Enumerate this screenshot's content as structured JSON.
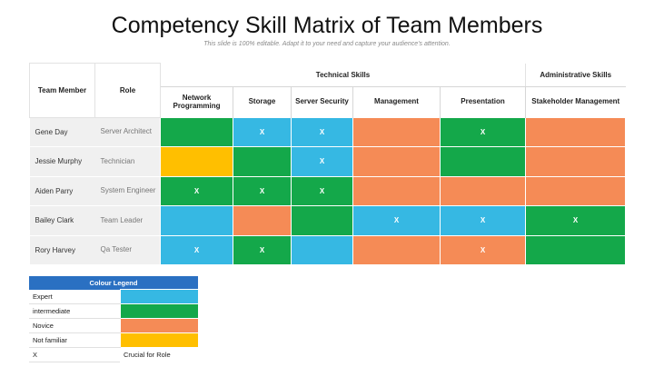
{
  "header": {
    "title": "Competency Skill Matrix of Team Members",
    "subtitle": "This slide is 100% editable. Adapt it to your need and capture your audience's attention."
  },
  "matrix": {
    "col_team_member": "Team Member",
    "col_role": "Role",
    "group_technical": "Technical Skills",
    "group_admin": "Administrative Skills",
    "skills": [
      "Network Programming",
      "Storage",
      "Server Security",
      "Management",
      "Presentation",
      "Stakeholder Management"
    ],
    "rows": [
      {
        "name": "Gene Day",
        "role": "Server Architect",
        "levels": [
          "intermediate",
          "expert",
          "expert",
          "novice",
          "intermediate",
          "novice"
        ],
        "marks": [
          "",
          "X",
          "X",
          "",
          "X",
          ""
        ]
      },
      {
        "name": "Jessie Murphy",
        "role": "Technician",
        "levels": [
          "notfam",
          "intermediate",
          "expert",
          "novice",
          "intermediate",
          "novice"
        ],
        "marks": [
          "",
          "",
          "X",
          "",
          "",
          ""
        ]
      },
      {
        "name": "Aiden Parry",
        "role": "System Engineer",
        "levels": [
          "intermediate",
          "intermediate",
          "intermediate",
          "novice",
          "novice",
          "novice"
        ],
        "marks": [
          "X",
          "X",
          "X",
          "",
          "",
          ""
        ]
      },
      {
        "name": "Bailey Clark",
        "role": "Team Leader",
        "levels": [
          "expert",
          "novice",
          "intermediate",
          "expert",
          "expert",
          "intermediate"
        ],
        "marks": [
          "",
          "",
          "",
          "X",
          "X",
          "X"
        ]
      },
      {
        "name": "Rory Harvey",
        "role": "Qa Tester",
        "levels": [
          "expert",
          "intermediate",
          "expert",
          "novice",
          "novice",
          "intermediate"
        ],
        "marks": [
          "X",
          "X",
          "",
          "",
          "X",
          ""
        ]
      }
    ]
  },
  "legend": {
    "title": "Colour Legend",
    "items": [
      {
        "label": "Expert",
        "level": "expert"
      },
      {
        "label": "intermediate",
        "level": "intermediate"
      },
      {
        "label": "Novice",
        "level": "novice"
      },
      {
        "label": "Not familiar",
        "level": "notfam"
      }
    ],
    "x_label": "X",
    "x_meaning": "Crucial for Role"
  },
  "colors": {
    "expert": "#36b8e3",
    "intermediate": "#14a84a",
    "novice": "#f58b56",
    "notfam": "#ffbf00",
    "legend_header": "#2a70c2"
  }
}
